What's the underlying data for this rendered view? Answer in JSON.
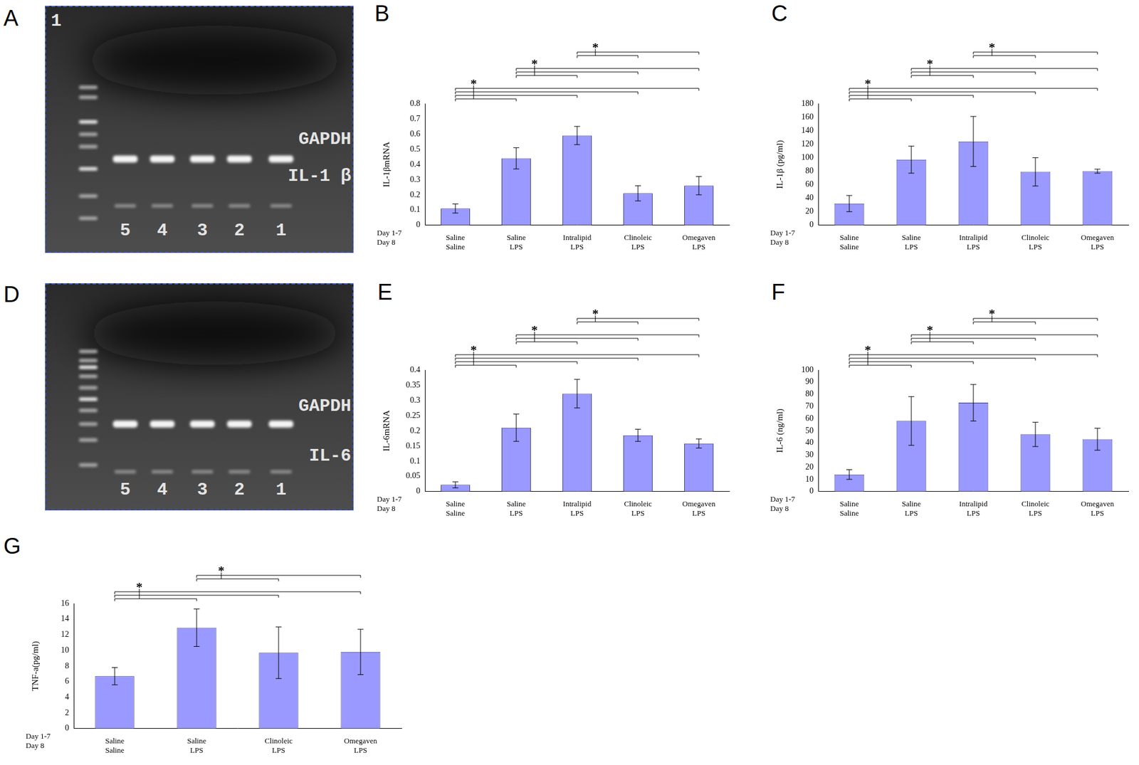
{
  "chart_data": [
    {
      "panel_label": "B",
      "type": "bar",
      "y_label": "IL-1βmRNA",
      "categories": [
        [
          "Saline",
          "Saline"
        ],
        [
          "Saline",
          "LPS"
        ],
        [
          "Intralipid",
          "LPS"
        ],
        [
          "Clinoleic",
          "LPS"
        ],
        [
          "Omegaven",
          "LPS"
        ]
      ],
      "row_labels": [
        "Day 1-7",
        "Day 8"
      ],
      "values": [
        0.11,
        0.44,
        0.59,
        0.21,
        0.26
      ],
      "errors": [
        0.03,
        0.07,
        0.06,
        0.05,
        0.06
      ],
      "color": "#9999ff",
      "grid": false,
      "ylim": [
        0,
        0.8
      ],
      "yticks": [
        0,
        0.1,
        0.2,
        0.3,
        0.4,
        0.5,
        0.6,
        0.7,
        0.8
      ],
      "significance": [
        {
          "from": 0,
          "to": [
            1,
            2,
            3,
            4
          ],
          "label": "*"
        },
        {
          "from": 1,
          "to": [
            2,
            3,
            4
          ],
          "label": "*"
        },
        {
          "from": 2,
          "to": [
            3,
            4
          ],
          "label": "*"
        }
      ]
    },
    {
      "panel_label": "C",
      "type": "bar",
      "y_label": "IL-1β (pg/ml)",
      "categories": [
        [
          "Saline",
          "Saline"
        ],
        [
          "Saline",
          "LPS"
        ],
        [
          "Intralipid",
          "LPS"
        ],
        [
          "Clinoleic",
          "LPS"
        ],
        [
          "Omegaven",
          "LPS"
        ]
      ],
      "row_labels": [
        "Day 1-7",
        "Day 8"
      ],
      "values": [
        32,
        97,
        124,
        79,
        80
      ],
      "errors": [
        12,
        20,
        37,
        21,
        3
      ],
      "color": "#9999ff",
      "grid": false,
      "ylim": [
        0,
        180
      ],
      "yticks": [
        0,
        20,
        40,
        60,
        80,
        100,
        120,
        140,
        160,
        180
      ],
      "significance": [
        {
          "from": 0,
          "to": [
            1,
            2,
            3,
            4
          ],
          "label": "*"
        },
        {
          "from": 1,
          "to": [
            2,
            3,
            4
          ],
          "label": "*"
        },
        {
          "from": 2,
          "to": [
            3,
            4
          ],
          "label": "*"
        }
      ]
    },
    {
      "panel_label": "E",
      "type": "bar",
      "y_label": "IL-6mRNA",
      "categories": [
        [
          "Saline",
          "Saline"
        ],
        [
          "Saline",
          "LPS"
        ],
        [
          "Intralipid",
          "LPS"
        ],
        [
          "Clinoleic",
          "LPS"
        ],
        [
          "Omegaven",
          "LPS"
        ]
      ],
      "row_labels": [
        "Day 1-7",
        "Day 8"
      ],
      "values": [
        0.022,
        0.21,
        0.322,
        0.185,
        0.158
      ],
      "errors": [
        0.01,
        0.045,
        0.047,
        0.02,
        0.015
      ],
      "color": "#9999ff",
      "grid": false,
      "ylim": [
        0,
        0.4
      ],
      "yticks": [
        0,
        0.05,
        0.1,
        0.15,
        0.2,
        0.25,
        0.3,
        0.35,
        0.4
      ],
      "significance": [
        {
          "from": 0,
          "to": [
            1,
            2,
            3,
            4
          ],
          "label": "*"
        },
        {
          "from": 1,
          "to": [
            2,
            3,
            4
          ],
          "label": "*"
        },
        {
          "from": 2,
          "to": [
            3,
            4
          ],
          "label": "*"
        }
      ]
    },
    {
      "panel_label": "F",
      "type": "bar",
      "y_label": "IL-6 (ng/ml)",
      "categories": [
        [
          "Saline",
          "Saline"
        ],
        [
          "Saline",
          "LPS"
        ],
        [
          "Intralipid",
          "LPS"
        ],
        [
          "Clinoleic",
          "LPS"
        ],
        [
          "Omegaven",
          "LPS"
        ]
      ],
      "row_labels": [
        "Day 1-7",
        "Day 8"
      ],
      "values": [
        14,
        58,
        73,
        47,
        43
      ],
      "errors": [
        4,
        20,
        15,
        10,
        9
      ],
      "color": "#9999ff",
      "grid": false,
      "ylim": [
        0,
        100
      ],
      "yticks": [
        0,
        10,
        20,
        30,
        40,
        50,
        60,
        70,
        80,
        90,
        100
      ],
      "significance": [
        {
          "from": 0,
          "to": [
            1,
            2,
            3,
            4
          ],
          "label": "*"
        },
        {
          "from": 1,
          "to": [
            2,
            3,
            4
          ],
          "label": "*"
        },
        {
          "from": 2,
          "to": [
            3,
            4
          ],
          "label": "*"
        }
      ]
    },
    {
      "panel_label": "G",
      "type": "bar",
      "y_label": "TNF-a(pg/ml)",
      "categories": [
        [
          "Saline",
          "Saline"
        ],
        [
          "Saline",
          "LPS"
        ],
        [
          "Clinoleic",
          "LPS"
        ],
        [
          "Omegaven",
          "LPS"
        ]
      ],
      "row_labels": [
        "Day 1-7",
        "Day 8"
      ],
      "values": [
        6.7,
        12.9,
        9.7,
        9.8
      ],
      "errors": [
        1.1,
        2.4,
        3.3,
        2.9
      ],
      "color": "#9999ff",
      "grid": false,
      "ylim": [
        0,
        16
      ],
      "yticks": [
        0,
        2,
        4,
        6,
        8,
        10,
        12,
        14,
        16
      ],
      "significance": [
        {
          "from": 0,
          "to": [
            1,
            2,
            3
          ],
          "label": "*"
        },
        {
          "from": 1,
          "to": [
            2,
            3
          ],
          "label": "*"
        }
      ]
    }
  ],
  "gels": [
    {
      "panel_label": "A",
      "corner_label": "1",
      "band_labels": [
        "GAPDH",
        "IL-1 β"
      ],
      "lane_labels": [
        "5",
        "4",
        "3",
        "2",
        "1"
      ]
    },
    {
      "panel_label": "D",
      "band_labels": [
        "GAPDH",
        "IL-6"
      ],
      "lane_labels": [
        "5",
        "4",
        "3",
        "2",
        "1"
      ]
    }
  ]
}
